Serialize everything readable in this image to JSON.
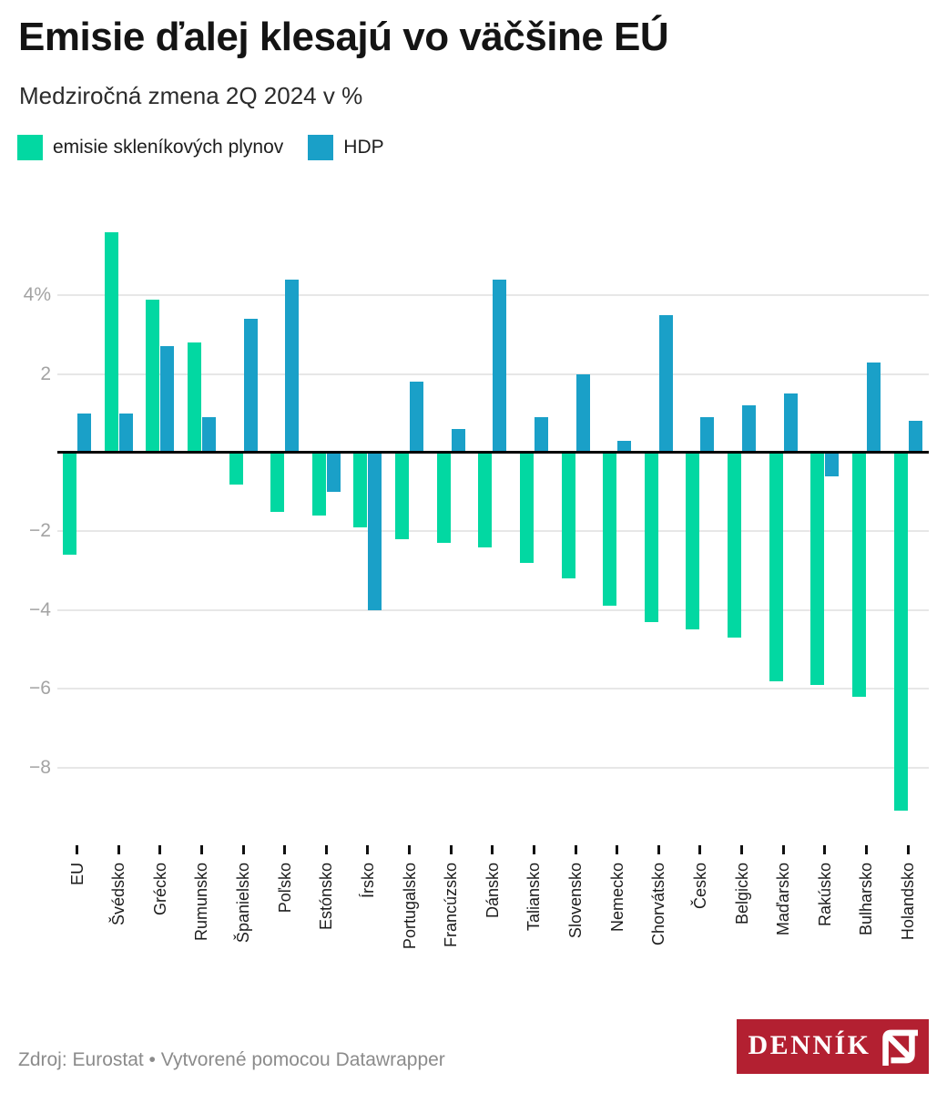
{
  "header": {
    "title": "Emisie ďalej klesajú vo väčšine EÚ",
    "subtitle": "Medziročná zmena 2Q 2024 v %"
  },
  "legend": {
    "items": [
      {
        "label": "emisie skleníkových plynov",
        "color": "#02d8a2"
      },
      {
        "label": "HDP",
        "color": "#1aa0c8"
      }
    ]
  },
  "chart_data": {
    "type": "bar",
    "orientation": "vertical-grouped",
    "unit": "%",
    "title": "Emisie ďalej klesajú vo väčšine EÚ",
    "subtitle": "Medziročná zmena 2Q 2024 v %",
    "categories": [
      "EU",
      "Švédsko",
      "Grécko",
      "Rumunsko",
      "Španielsko",
      "Poľsko",
      "Estónsko",
      "Írsko",
      "Portugalsko",
      "Francúzsko",
      "Dánsko",
      "Taliansko",
      "Slovensko",
      "Nemecko",
      "Chorvátsko",
      "Česko",
      "Belgicko",
      "Maďarsko",
      "Rakúsko",
      "Bulharsko",
      "Holandsko"
    ],
    "series": [
      {
        "name": "emisie skleníkových plynov",
        "color": "#02d8a2",
        "values": [
          -2.6,
          5.6,
          3.9,
          2.8,
          -0.8,
          -1.5,
          -1.6,
          -1.9,
          -2.2,
          -2.3,
          -2.4,
          -2.8,
          -3.2,
          -3.9,
          -4.3,
          -4.5,
          -4.7,
          -5.8,
          -5.9,
          -6.2,
          -9.1
        ]
      },
      {
        "name": "HDP",
        "color": "#1aa0c8",
        "values": [
          1.0,
          1.0,
          2.7,
          0.9,
          3.4,
          4.4,
          -1.0,
          -4.0,
          1.8,
          0.6,
          4.4,
          0.9,
          2.0,
          0.3,
          3.5,
          0.9,
          1.2,
          1.5,
          -0.6,
          2.3,
          0.8
        ]
      }
    ],
    "y_axis": {
      "ticks": [
        {
          "value": 4,
          "label": "4%"
        },
        {
          "value": 2,
          "label": "2"
        },
        {
          "value": -2,
          "label": "−2"
        },
        {
          "value": -4,
          "label": "−4"
        },
        {
          "value": -6,
          "label": "−6"
        },
        {
          "value": -8,
          "label": "−8"
        }
      ],
      "range": [
        -9.6,
        5.9
      ],
      "zero_line": true
    },
    "grid": true,
    "legend_position": "top-left"
  },
  "colors": {
    "grid": "#e7e7e7",
    "zero_line": "#000000",
    "y_label": "#a3a3a3",
    "x_label": "#1c1c1c",
    "logo_background": "#b32031"
  },
  "footer": {
    "source": "Zdroj: Eurostat • Vytvorené pomocou Datawrapper"
  },
  "logo": {
    "wordmark": "DENNÍK",
    "mark": "N"
  }
}
